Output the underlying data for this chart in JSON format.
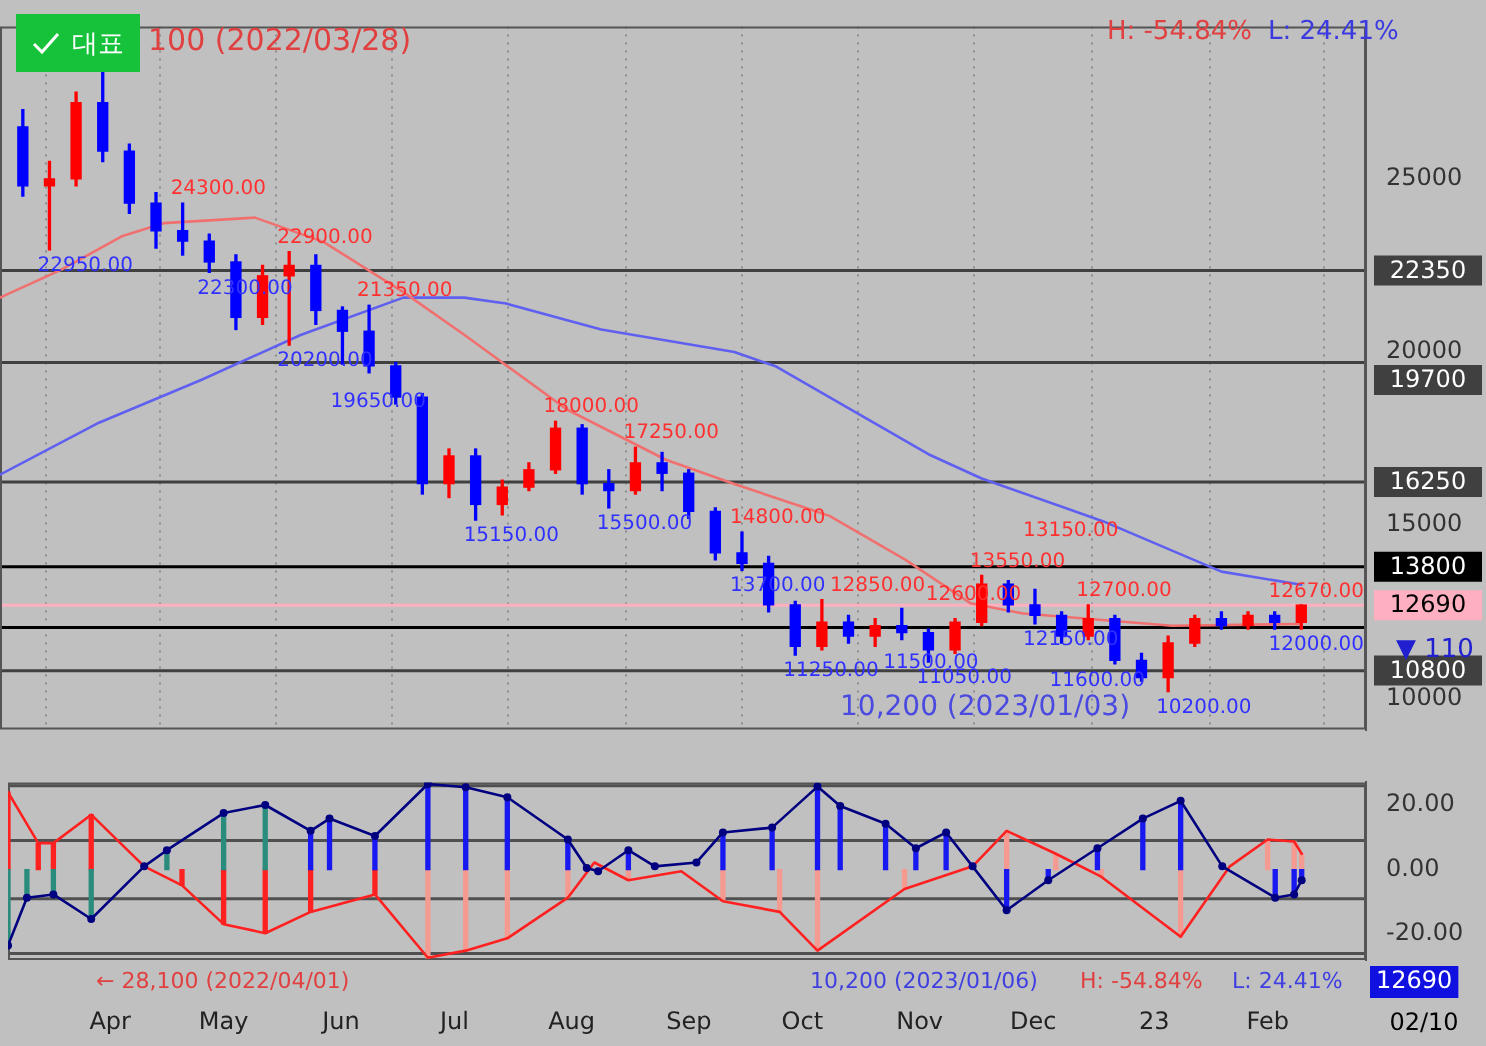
{
  "chart_data": [
    {
      "type": "candlestick",
      "x": [
        "2022-03-11",
        "2022-03-18",
        "2022-03-25",
        "2022-04-01",
        "2022-04-08",
        "2022-04-15",
        "2022-04-22",
        "2022-04-29",
        "2022-05-06",
        "2022-05-13",
        "2022-05-20",
        "2022-05-27",
        "2022-06-03",
        "2022-06-10",
        "2022-06-17",
        "2022-06-24",
        "2022-07-01",
        "2022-07-08",
        "2022-07-15",
        "2022-07-22",
        "2022-07-29",
        "2022-08-05",
        "2022-08-12",
        "2022-08-19",
        "2022-08-26",
        "2022-09-02",
        "2022-09-09",
        "2022-09-16",
        "2022-09-23",
        "2022-09-30",
        "2022-10-07",
        "2022-10-14",
        "2022-10-21",
        "2022-10-28",
        "2022-11-04",
        "2022-11-11",
        "2022-11-18",
        "2022-11-25",
        "2022-12-02",
        "2022-12-09",
        "2022-12-16",
        "2022-12-23",
        "2022-12-30",
        "2023-01-06",
        "2023-01-13",
        "2023-01-20",
        "2023-01-27",
        "2023-02-03",
        "2023-02-10"
      ],
      "ohlc": [
        [
          26500,
          27000,
          24500,
          24800
        ],
        [
          24800,
          25500,
          22950,
          25000
        ],
        [
          25000,
          27500,
          24800,
          27200
        ],
        [
          27200,
          28100,
          25500,
          25800
        ],
        [
          25800,
          26000,
          24000,
          24300
        ],
        [
          24300,
          24600,
          23000,
          23500
        ],
        [
          23500,
          24300,
          22800,
          23200
        ],
        [
          23200,
          23400,
          22300,
          22600
        ],
        [
          22600,
          22800,
          20650,
          21000
        ],
        [
          21000,
          22500,
          20800,
          22200
        ],
        [
          22200,
          22900,
          20200,
          22500
        ],
        [
          22500,
          22800,
          20800,
          21200
        ],
        [
          21200,
          21300,
          19650,
          20600
        ],
        [
          20600,
          21350,
          19400,
          19600
        ],
        [
          19600,
          19700,
          18500,
          18700
        ],
        [
          18700,
          18800,
          15900,
          16200
        ],
        [
          16200,
          17200,
          15800,
          17000
        ],
        [
          17000,
          17200,
          15150,
          15600
        ],
        [
          15600,
          16300,
          15300,
          16100
        ],
        [
          16100,
          16800,
          16000,
          16600
        ],
        [
          16600,
          18000,
          16500,
          17800
        ],
        [
          17800,
          17900,
          15900,
          16200
        ],
        [
          16200,
          16600,
          15500,
          16000
        ],
        [
          16000,
          17250,
          15900,
          16800
        ],
        [
          16800,
          17100,
          16000,
          16500
        ],
        [
          16500,
          16600,
          15200,
          15400
        ],
        [
          15400,
          15500,
          14000,
          14200
        ],
        [
          14200,
          14800,
          13700,
          13900
        ],
        [
          13900,
          14100,
          12500,
          12700
        ],
        [
          12700,
          12800,
          11250,
          11500
        ],
        [
          11500,
          12850,
          11400,
          12200
        ],
        [
          12200,
          12400,
          11600,
          11800
        ],
        [
          11800,
          12300,
          11500,
          12100
        ],
        [
          12100,
          12600,
          11700,
          11900
        ],
        [
          11900,
          12000,
          11050,
          11400
        ],
        [
          11400,
          12300,
          11300,
          12200
        ],
        [
          12200,
          13550,
          12100,
          13300
        ],
        [
          13300,
          13400,
          12500,
          12700
        ],
        [
          12700,
          13150,
          12150,
          12400
        ],
        [
          12400,
          12500,
          11600,
          11800
        ],
        [
          11800,
          12700,
          11700,
          12300
        ],
        [
          12300,
          12400,
          11000,
          11100
        ],
        [
          11100,
          11300,
          10500,
          10600
        ],
        [
          10600,
          11800,
          10200,
          11600
        ],
        [
          11600,
          12400,
          11500,
          12300
        ],
        [
          12300,
          12500,
          12000,
          12100
        ],
        [
          12100,
          12500,
          12000,
          12400
        ],
        [
          12400,
          12500,
          12000,
          12200
        ],
        [
          12200,
          12700,
          12000,
          12690
        ]
      ],
      "colors": [
        "#0000ff",
        "#ff0000",
        "#ff0000",
        "#0000ff",
        "#0000ff",
        "#0000ff",
        "#0000ff",
        "#0000ff",
        "#0000ff",
        "#ff0000",
        "#ff0000",
        "#0000ff",
        "#0000ff",
        "#0000ff",
        "#0000ff",
        "#0000ff",
        "#ff0000",
        "#0000ff",
        "#ff0000",
        "#ff0000",
        "#ff0000",
        "#0000ff",
        "#0000ff",
        "#ff0000",
        "#0000ff",
        "#0000ff",
        "#0000ff",
        "#0000ff",
        "#0000ff",
        "#0000ff",
        "#ff0000",
        "#0000ff",
        "#ff0000",
        "#0000ff",
        "#0000ff",
        "#ff0000",
        "#ff0000",
        "#0000ff",
        "#0000ff",
        "#0000ff",
        "#ff0000",
        "#0000ff",
        "#0000ff",
        "#ff0000",
        "#ff0000",
        "#0000ff",
        "#ff0000",
        "#0000ff",
        "#ff0000"
      ],
      "series": [
        {
          "type": "line",
          "color": "#f07070",
          "x": [
            "2022-03-05",
            "2022-03-21",
            "2022-04-06",
            "2022-04-17",
            "2022-05-11",
            "2022-05-29",
            "2022-06-19",
            "2022-07-05",
            "2022-08-01",
            "2022-08-27",
            "2022-09-14",
            "2022-10-09",
            "2022-10-29",
            "2022-11-15",
            "2022-11-29",
            "2023-01-07",
            "2023-02-10"
          ],
          "values": [
            21570,
            22370,
            23340,
            23720,
            23880,
            23180,
            21730,
            20500,
            18340,
            16890,
            16190,
            15270,
            14000,
            12750,
            12450,
            12100,
            12150
          ]
        },
        {
          "type": "line",
          "color": "#6060f0",
          "x": [
            "2022-03-05",
            "2022-03-31",
            "2022-04-27",
            "2022-05-23",
            "2022-06-19",
            "2022-07-05",
            "2022-07-16",
            "2022-08-10",
            "2022-09-14",
            "2022-09-25",
            "2022-11-04",
            "2022-11-18",
            "2022-12-20",
            "2023-01-20",
            "2023-02-10"
          ],
          "values": [
            16460,
            17960,
            19200,
            20490,
            21570,
            21570,
            21400,
            20650,
            20000,
            19580,
            17050,
            16350,
            15110,
            13660,
            13280
          ]
        }
      ],
      "xlim": [
        "2022-03-05",
        "2023-02-27"
      ],
      "xticks": [
        {
          "value": "2022-04-01",
          "label": null
        },
        {
          "value": "2022-05-01",
          "label": null
        },
        {
          "value": "2022-06-01",
          "label": null
        },
        {
          "value": "2022-07-01",
          "label": null
        },
        {
          "value": "2022-08-01",
          "label": null
        },
        {
          "value": "2022-09-01",
          "label": null
        },
        {
          "value": "2022-10-01",
          "label": null
        },
        {
          "value": "2022-11-01",
          "label": null
        },
        {
          "value": "2022-12-01",
          "label": null
        },
        {
          "value": "2023-01-02",
          "label": null
        },
        {
          "value": "2023-02-01",
          "label": null
        }
      ],
      "ylim": [
        9100,
        29400
      ],
      "yticks": [
        10000,
        15000,
        20000,
        25000
      ],
      "tick_labels": "y",
      "grid": "x",
      "ref_lines": [
        {
          "axis": "y",
          "value": 22350,
          "label": "22350",
          "color": "#404040"
        },
        {
          "axis": "y",
          "value": 19700,
          "label": "19700",
          "color": "#404040"
        },
        {
          "axis": "y",
          "value": 16250,
          "label": "16250",
          "color": "#404040"
        },
        {
          "axis": "y",
          "value": 13800,
          "label": "13800",
          "color": "#000000"
        },
        {
          "axis": "y",
          "value": 12690,
          "label": "12690",
          "color": "#ffb0c0"
        },
        {
          "axis": "y",
          "value": 12050,
          "color": "#000000"
        },
        {
          "axis": "y",
          "value": 10800,
          "label": "10800",
          "color": "#404040"
        }
      ],
      "annotations": [
        "대표",
        "100 (2022/03/28)",
        "H: -54.84%",
        "L: 24.41%",
        "10,200 (2023/01/03)",
        "▼ 110",
        {
          "text": "22950.00",
          "x": "2022-03-18",
          "y": 22950
        },
        {
          "text": "24300.00",
          "x": "2022-04-22",
          "y": 24300
        },
        {
          "text": "22300.00",
          "x": "2022-04-29",
          "y": 22300
        },
        {
          "text": "22900.00",
          "x": "2022-05-20",
          "y": 22900
        },
        {
          "text": "20200.00",
          "x": "2022-05-20",
          "y": 20200
        },
        {
          "text": "19650.00",
          "x": "2022-06-03",
          "y": 19650
        },
        {
          "text": "21350.00",
          "x": "2022-06-10",
          "y": 21350
        },
        {
          "text": "15150.00",
          "x": "2022-07-08",
          "y": 15150
        },
        {
          "text": "18000.00",
          "x": "2022-07-29",
          "y": 18000
        },
        {
          "text": "15500.00",
          "x": "2022-08-12",
          "y": 15500
        },
        {
          "text": "17250.00",
          "x": "2022-08-19",
          "y": 17250
        },
        {
          "text": "14800.00",
          "x": "2022-09-16",
          "y": 14800
        },
        {
          "text": "13700.00",
          "x": "2022-09-16",
          "y": 13700
        },
        {
          "text": "11250.00",
          "x": "2022-09-30",
          "y": 11250
        },
        {
          "text": "12850.00",
          "x": "2022-10-07",
          "y": 12850
        },
        {
          "text": "11500.00",
          "x": "2022-10-21",
          "y": 11500
        },
        {
          "text": "12600.00",
          "x": "2022-10-28",
          "y": 12600
        },
        {
          "text": "11050.00",
          "x": "2022-11-04",
          "y": 11050
        },
        {
          "text": "13550.00",
          "x": "2022-11-18",
          "y": 13550
        },
        {
          "text": "13150.00",
          "x": "2022-12-02",
          "y": 13150
        },
        {
          "text": "12150.00",
          "x": "2022-12-02",
          "y": 12150
        },
        {
          "text": "11600.00",
          "x": "2022-12-09",
          "y": 11600
        },
        {
          "text": "12700.00",
          "x": "2022-12-16",
          "y": 12700
        },
        {
          "text": "10200.00",
          "x": "2023-01-06",
          "y": 10200
        },
        {
          "text": "12670.00",
          "x": "2023-02-10",
          "y": 12670
        },
        {
          "text": "12000.00",
          "x": "2023-02-10",
          "y": 12000
        }
      ]
    },
    {
      "type": "line",
      "series": [
        {
          "type": "bar",
          "x": [
            "2022-03-05",
            "2022-03-10",
            "2022-03-17",
            "2022-03-27",
            "2022-04-16",
            "2022-05-01",
            "2022-05-12",
            "2022-05-24",
            "2022-05-29",
            "2022-06-10",
            "2022-06-24",
            "2022-07-04",
            "2022-07-15",
            "2022-07-31",
            "2022-08-16",
            "2022-09-03",
            "2022-09-10",
            "2022-09-23",
            "2022-10-05",
            "2022-10-11",
            "2022-10-23",
            "2022-10-31",
            "2022-11-08",
            "2022-11-24",
            "2022-12-05",
            "2022-12-18",
            "2022-12-30",
            "2023-01-09",
            "2023-02-03",
            "2023-02-08",
            "2023-02-10"
          ],
          "values": [
            -23.5,
            -8.7,
            -7.7,
            -15.3,
            6,
            17.5,
            20,
            12,
            15.8,
            10.4,
            26.5,
            25.5,
            22.4,
            9.3,
            6,
            null,
            11.5,
            13,
            25.7,
            19.7,
            14.2,
            6.6,
            11.5,
            -12.6,
            -3.3,
            6.6,
            15.8,
            21.3,
            -8.7,
            -7.7,
            -3.3
          ],
          "colors": [
            "#2a8c7c",
            "#2a8c7c",
            "#2a8c7c",
            "#2a8c7c",
            "#2a8c7c",
            "#2a8c7c",
            "#2a8c7c",
            "#1818f0",
            "#1818f0",
            "#1818f0",
            "#1818f0",
            "#1818f0",
            "#1818f0",
            "#1818f0",
            "#1818f0",
            "#1818f0",
            "#1818f0",
            "#1818f0",
            "#1818f0",
            "#1818f0",
            "#1818f0",
            "#1818f0",
            "#1818f0",
            "#1818f0",
            "#1818f0",
            "#1818f0",
            "#1818f0",
            "#1818f0",
            "#1818f0",
            "#1818f0",
            "#1818f0"
          ]
        },
        {
          "type": "bar",
          "x": [
            "2022-03-05",
            "2022-03-13",
            "2022-03-17",
            "2022-03-27",
            "2022-04-20",
            "2022-05-01",
            "2022-05-12",
            "2022-05-24",
            "2022-06-10",
            "2022-06-24",
            "2022-07-04",
            "2022-07-15",
            "2022-07-31",
            "2022-08-07",
            "2022-08-16",
            "2022-09-10",
            "2022-09-25",
            "2022-10-05",
            "2022-10-28",
            "2022-11-24",
            "2022-12-07",
            "2022-12-19",
            "2023-01-09",
            "2023-02-01",
            "2023-02-08",
            "2023-02-10"
          ],
          "values": [
            24,
            8.2,
            8.2,
            17,
            -4.9,
            -16.9,
            -19.7,
            -13.1,
            -7.7,
            -27.3,
            -25.1,
            -21.3,
            -8.7,
            null,
            -3.3,
            -9.8,
            -13.1,
            -25.1,
            -6,
            12,
            4.9,
            -2.2,
            -20.8,
            9.3,
            8.7,
            4.9
          ],
          "colors": [
            "#ff2020",
            "#ff2020",
            "#ff2020",
            "#ff2020",
            "#ff2020",
            "#ff2020",
            "#ff2020",
            "#ff2020",
            "#ff2020",
            "#f49a90",
            "#f49a90",
            "#f49a90",
            "#f49a90",
            "#f49a90",
            "#f49a90",
            "#f49a90",
            "#f49a90",
            "#f49a90",
            "#f49a90",
            "#f49a90",
            "#f49a90",
            "#f49a90",
            "#f49a90",
            "#f49a90",
            "#f49a90",
            "#f49a90"
          ]
        },
        {
          "type": "line",
          "color": "#000080",
          "marker": "circle",
          "x": [
            "2022-03-05",
            "2022-03-10",
            "2022-03-17",
            "2022-03-27",
            "2022-04-10",
            "2022-04-16",
            "2022-05-01",
            "2022-05-12",
            "2022-05-24",
            "2022-05-29",
            "2022-06-10",
            "2022-06-24",
            "2022-07-04",
            "2022-07-15",
            "2022-07-31",
            "2022-08-05",
            "2022-08-08",
            "2022-08-16",
            "2022-08-23",
            "2022-09-03",
            "2022-09-10",
            "2022-09-23",
            "2022-10-05",
            "2022-10-11",
            "2022-10-23",
            "2022-10-31",
            "2022-11-08",
            "2022-11-15",
            "2022-11-24",
            "2022-12-05",
            "2022-12-18",
            "2022-12-30",
            "2023-01-09",
            "2023-01-20",
            "2023-02-03",
            "2023-02-08",
            "2023-02-10"
          ],
          "values": [
            -23.5,
            -8.7,
            -7.7,
            -15.3,
            1,
            6,
            17.5,
            20,
            12,
            15.8,
            10.4,
            26.5,
            25.5,
            22.4,
            9.3,
            0.5,
            -0.5,
            6,
            1,
            2.2,
            11.5,
            13,
            25.7,
            19.7,
            14.2,
            6.6,
            11.5,
            1,
            -12.6,
            -3.3,
            6.6,
            15.8,
            21.3,
            1,
            -8.7,
            -7.7,
            -3.3
          ]
        },
        {
          "type": "line",
          "color": "#ff2020",
          "x": [
            "2022-03-05",
            "2022-03-13",
            "2022-03-17",
            "2022-03-27",
            "2022-04-10",
            "2022-04-20",
            "2022-05-01",
            "2022-05-12",
            "2022-05-24",
            "2022-06-10",
            "2022-06-24",
            "2022-07-04",
            "2022-07-15",
            "2022-07-31",
            "2022-08-07",
            "2022-08-16",
            "2022-08-30",
            "2022-09-10",
            "2022-09-25",
            "2022-10-05",
            "2022-10-28",
            "2022-11-15",
            "2022-11-24",
            "2022-12-07",
            "2022-12-19",
            "2023-01-09",
            "2023-01-22",
            "2023-02-01",
            "2023-02-08",
            "2023-02-10"
          ],
          "values": [
            24,
            8.2,
            8.2,
            17,
            1,
            -4.9,
            -16.9,
            -19.7,
            -13.1,
            -7.7,
            -27.3,
            -25.1,
            -21.3,
            -8.7,
            2.2,
            -3.3,
            -0.5,
            -9.8,
            -13.1,
            -25.1,
            -6,
            1,
            12,
            4.9,
            -2.2,
            -20.8,
            1,
            9.3,
            8.7,
            4.9
          ]
        }
      ],
      "xlim": [
        "2022-03-05",
        "2023-02-27"
      ],
      "xticks": [
        {
          "value": "2022-04-01",
          "label": "Apr"
        },
        {
          "value": "2022-05-01",
          "label": "May"
        },
        {
          "value": "2022-06-01",
          "label": "Jun"
        },
        {
          "value": "2022-07-01",
          "label": "Jul"
        },
        {
          "value": "2022-08-01",
          "label": "Aug"
        },
        {
          "value": "2022-09-01",
          "label": "Sep"
        },
        {
          "value": "2022-10-01",
          "label": "Oct"
        },
        {
          "value": "2022-11-01",
          "label": "Nov"
        },
        {
          "value": "2022-12-01",
          "label": "Dec"
        },
        {
          "value": "2023-01-02",
          "label": "23"
        },
        {
          "value": "2023-02-01",
          "label": "Feb"
        }
      ],
      "ylim": [
        -28,
        27
      ],
      "yticks": [
        {
          "value": -20,
          "label": "-20.00"
        },
        {
          "value": 0,
          "label": "0.00"
        },
        {
          "value": 20,
          "label": "20.00"
        }
      ],
      "ref_lines": [
        {
          "axis": "y",
          "value": 26,
          "color": "#505050"
        },
        {
          "axis": "y",
          "value": 9,
          "color": "#505050"
        },
        {
          "axis": "y",
          "value": -9,
          "color": "#505050"
        },
        {
          "axis": "y",
          "value": -26,
          "color": "#505050"
        }
      ],
      "annotations": [
        "← 28,100 (2022/04/01)",
        "10,200 (2023/01/06)",
        "H: -54.84%",
        "L: 24.41%",
        "12690",
        "02/10"
      ]
    }
  ]
}
